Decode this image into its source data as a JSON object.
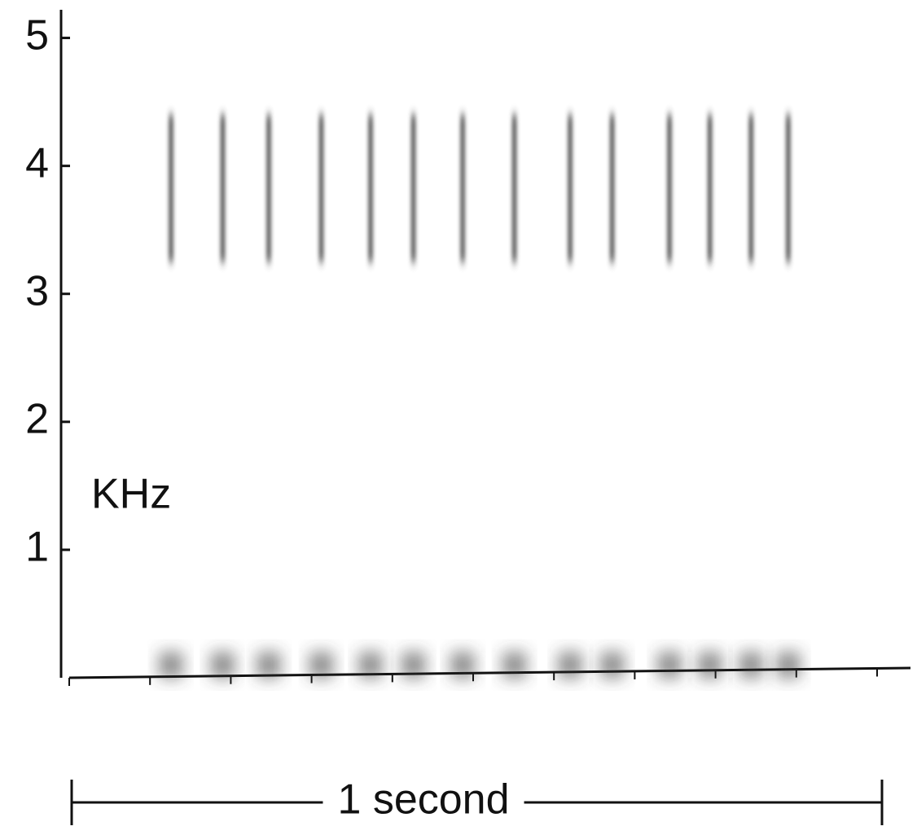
{
  "chart_data": {
    "type": "spectrogram",
    "ylabel": "KHz",
    "xlabel": "1 second",
    "xlim": [
      0,
      1
    ],
    "ylim": [
      0,
      5.22
    ],
    "xticks": [
      0,
      0.1,
      0.2,
      0.3,
      0.4,
      0.5,
      0.6,
      0.7,
      0.8,
      0.9,
      1
    ],
    "yticks": [
      1,
      2,
      3,
      4,
      5
    ],
    "pulses": {
      "x": [
        0.126,
        0.19,
        0.247,
        0.312,
        0.373,
        0.426,
        0.487,
        0.551,
        0.62,
        0.672,
        0.743,
        0.793,
        0.844,
        0.89
      ],
      "high": 4.4,
      "low": 3.25,
      "noise_top": 0.2
    },
    "color": "#333333"
  }
}
